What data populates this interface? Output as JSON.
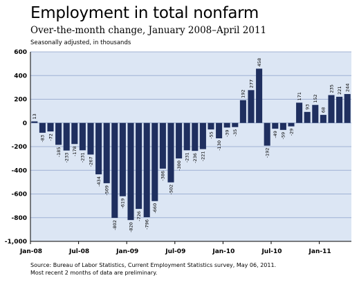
{
  "chart_data": {
    "type": "bar",
    "title": "Employment in total nonfarm",
    "subtitle": "Over-the-month change, January 2008–April 2011",
    "note": "Seasonally adjusted, in thousands",
    "source_line1": "Source: Bureau of Labor Statistics, Current Employment Statistics survey, May 06, 2011.",
    "source_line2": "Most recent 2 months of data are preliminary.",
    "xlabel": "",
    "ylabel": "",
    "ylim": [
      -1000,
      600
    ],
    "yticks": [
      600,
      400,
      200,
      0,
      -200,
      -400,
      -600,
      -800,
      -1000
    ],
    "ytick_labels": [
      "600",
      "400",
      "200",
      "0",
      "-200",
      "-400",
      "-600",
      "-800",
      "-1,000"
    ],
    "xtick_labels": [
      {
        "label": "Jan-08",
        "index": 0
      },
      {
        "label": "Jul-08",
        "index": 6
      },
      {
        "label": "Jan-09",
        "index": 12
      },
      {
        "label": "Jul-09",
        "index": 18
      },
      {
        "label": "Jan-10",
        "index": 24
      },
      {
        "label": "Jul-10",
        "index": 30
      },
      {
        "label": "Jan-11",
        "index": 36
      }
    ],
    "grid": true,
    "bar_color": "#1f2f5f",
    "plot_background": "#dce6f4",
    "grid_color": "#9fb1d3",
    "categories": [
      "Jan-08",
      "Feb-08",
      "Mar-08",
      "Apr-08",
      "May-08",
      "Jun-08",
      "Jul-08",
      "Aug-08",
      "Sep-08",
      "Oct-08",
      "Nov-08",
      "Dec-08",
      "Jan-09",
      "Feb-09",
      "Mar-09",
      "Apr-09",
      "May-09",
      "Jun-09",
      "Jul-09",
      "Aug-09",
      "Sep-09",
      "Oct-09",
      "Nov-09",
      "Dec-09",
      "Jan-10",
      "Feb-10",
      "Mar-10",
      "Apr-10",
      "May-10",
      "Jun-10",
      "Jul-10",
      "Aug-10",
      "Sep-10",
      "Oct-10",
      "Nov-10",
      "Dec-10",
      "Jan-11",
      "Feb-11",
      "Mar-11",
      "Apr-11"
    ],
    "values": [
      13,
      -83,
      -72,
      -185,
      -233,
      -178,
      -231,
      -267,
      -434,
      -509,
      -802,
      -619,
      -820,
      -726,
      -796,
      -660,
      -386,
      -502,
      -300,
      -231,
      -236,
      -221,
      -55,
      -130,
      -39,
      -35,
      192,
      277,
      458,
      -192,
      -49,
      -59,
      -29,
      171,
      93,
      152,
      68,
      235,
      221,
      244
    ],
    "data_labels": [
      "13",
      "-83",
      "-72",
      "-185",
      "-233",
      "-178",
      "-231",
      "-267",
      "-434",
      "-509",
      "-802",
      "-619",
      "-820",
      "-726",
      "-796",
      "-660",
      "-386",
      "-502",
      "-300",
      "-231",
      "-236",
      "-221",
      "-55",
      "-130",
      "-39",
      "-35",
      "192",
      "277",
      "458",
      "-192",
      "-49",
      "-59",
      "-29",
      "171",
      "93",
      "152",
      "68",
      "235",
      "221",
      "244"
    ]
  }
}
